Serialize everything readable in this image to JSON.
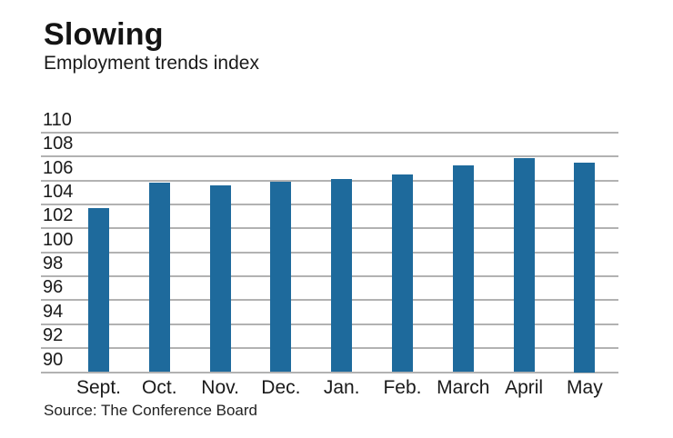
{
  "header": {
    "title": "Slowing",
    "subtitle": "Employment trends index"
  },
  "footer": {
    "source": "Source: The Conference Board"
  },
  "chart_data": {
    "type": "bar",
    "title": "Slowing",
    "subtitle": "Employment trends index",
    "source": "Source: The Conference Board",
    "categories": [
      "Sept.",
      "Oct.",
      "Nov.",
      "Dec.",
      "Jan.",
      "Feb.",
      "March",
      "April",
      "May"
    ],
    "values": [
      103.7,
      105.8,
      105.6,
      105.9,
      106.1,
      106.5,
      107.3,
      107.9,
      107.5
    ],
    "ylim": [
      90,
      110
    ],
    "ytick_step": 2,
    "yticks": [
      110,
      108,
      106,
      104,
      102,
      100,
      98,
      96,
      94,
      92,
      90
    ],
    "grid": "horizontal",
    "legend": "none",
    "bar_color": "#1e6a9c",
    "grid_color": "#b2b2b2",
    "text_color": "#1a1a1a"
  }
}
